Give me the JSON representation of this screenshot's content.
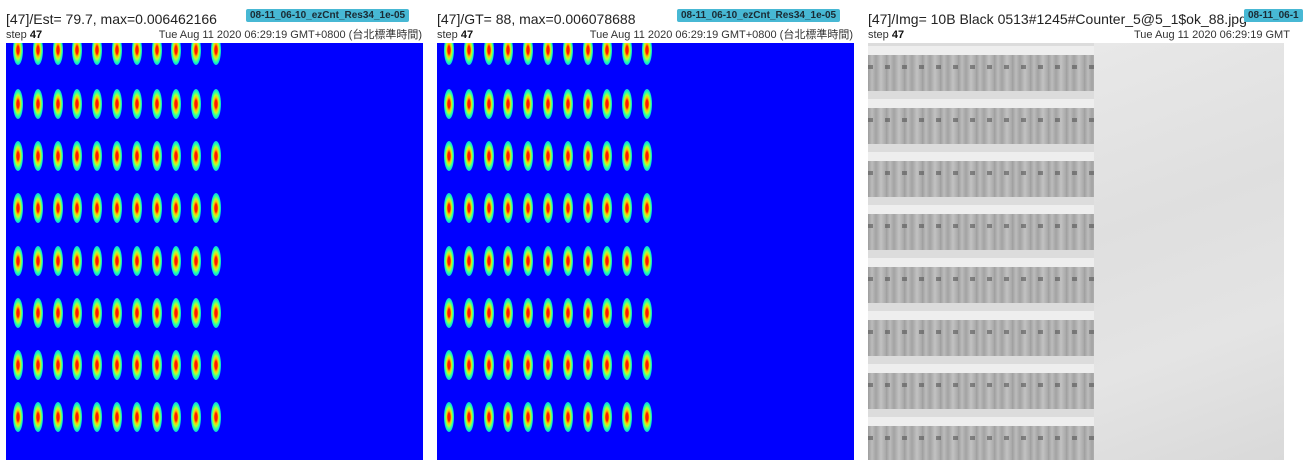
{
  "panels": [
    {
      "title": "[47]/Est= 79.7, max=0.006462166",
      "tag": "08-11_06-10_ezCnt_Res34_1e-05",
      "step_label": "step",
      "step_value": "47",
      "timestamp": "Tue Aug 11 2020 06:29:19 GMT+0800 (台北標準時間)",
      "image": "density-heatmap"
    },
    {
      "title": "[47]/GT= 88, max=0.006078688",
      "tag": "08-11_06-10_ezCnt_Res34_1e-05",
      "step_label": "step",
      "step_value": "47",
      "timestamp": "Tue Aug 11 2020 06:29:19 GMT+0800 (台北標準時間)",
      "image": "density-heatmap"
    },
    {
      "title": "[47]/Img= 10B Black 0513#1245#Counter_5@5_1$ok_88.jpg",
      "tag": "08-11_06-1",
      "step_label": "step",
      "step_value": "47",
      "timestamp": "Tue Aug 11 2020 06:29:19 GMT",
      "image": "photo"
    }
  ],
  "colors": {
    "tag_background": "#47b8d4",
    "heatmap_background": "#0000ff",
    "heatmap_peak": "#ff1a00"
  }
}
